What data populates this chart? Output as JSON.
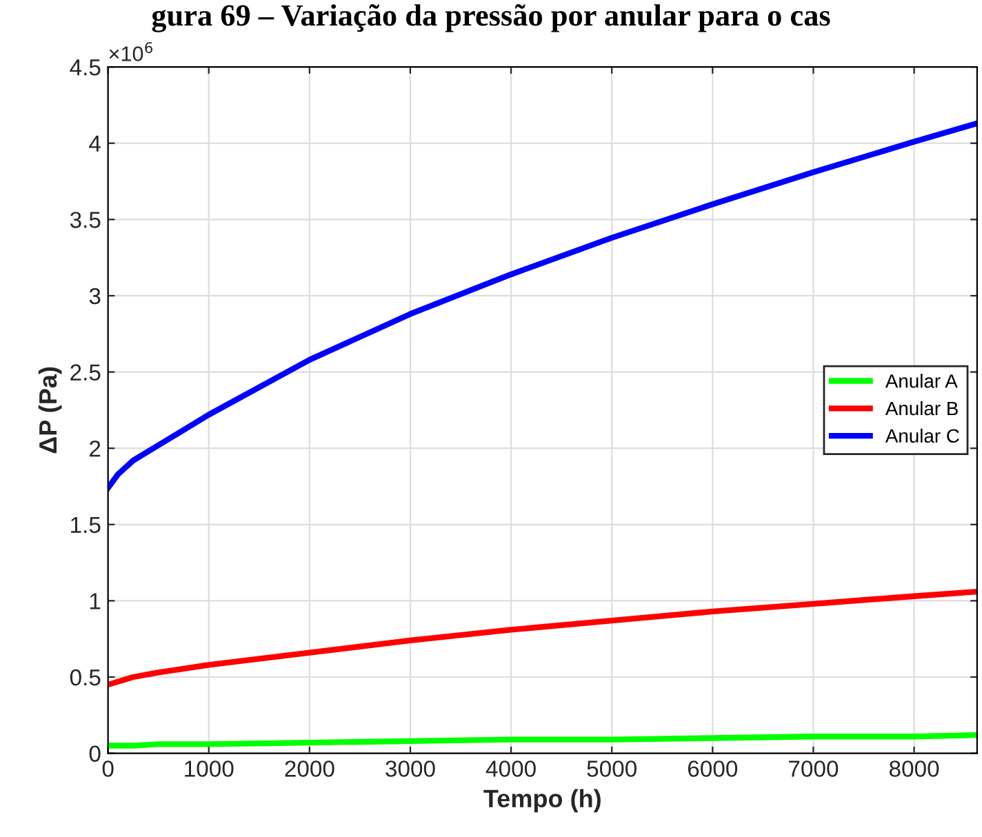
{
  "chart_data": {
    "type": "line",
    "title": "gura 69 – Variação da pressão por anular para o cas",
    "xlabel": "Tempo (h)",
    "ylabel": "ΔP (Pa)",
    "x": [
      0,
      100,
      250,
      500,
      1000,
      2000,
      3000,
      4000,
      5000,
      6000,
      7000,
      8000,
      8625
    ],
    "series": [
      {
        "name": "Anular A",
        "color": "#00ff00",
        "values": [
          0.05,
          0.05,
          0.05,
          0.06,
          0.06,
          0.07,
          0.08,
          0.09,
          0.09,
          0.1,
          0.11,
          0.11,
          0.12
        ]
      },
      {
        "name": "Anular B",
        "color": "#ff0000",
        "values": [
          0.45,
          0.47,
          0.5,
          0.53,
          0.58,
          0.66,
          0.74,
          0.81,
          0.87,
          0.93,
          0.98,
          1.03,
          1.06
        ]
      },
      {
        "name": "Anular C",
        "color": "#0000ff",
        "values": [
          1.74,
          1.83,
          1.92,
          2.02,
          2.22,
          2.58,
          2.88,
          3.14,
          3.38,
          3.6,
          3.81,
          4.01,
          4.13
        ]
      }
    ],
    "xlim": [
      0,
      8625
    ],
    "xticks": [
      0,
      1000,
      2000,
      3000,
      4000,
      5000,
      6000,
      7000,
      8000
    ],
    "ylim": [
      0,
      4.5
    ],
    "yticks": [
      0,
      0.5,
      1,
      1.5,
      2,
      2.5,
      3,
      3.5,
      4,
      4.5
    ],
    "annotations": [
      "×10$^{6}$"
    ],
    "grid": true,
    "legend": "right",
    "marker": "none",
    "line_style": "solid"
  }
}
